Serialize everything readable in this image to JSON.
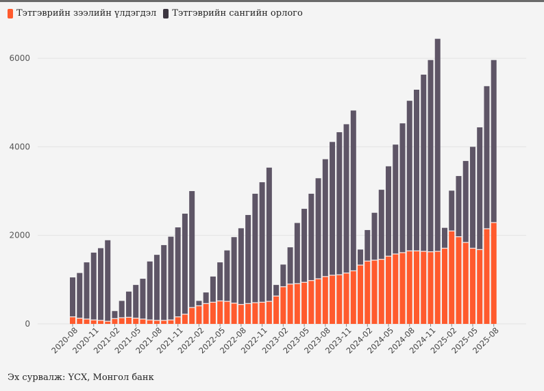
{
  "legend": {
    "series1": "Тэтгэврийн зээлийн үлдэгдэл",
    "series2": "Тэтгэврийн сангийн орлого"
  },
  "colors": {
    "series1": "#ff5a2d",
    "series2": "#5e5566",
    "grid": "#e2e2e2"
  },
  "source": "Эх сурвалж: ҮСХ, Монгол банк",
  "chart_data": {
    "type": "bar",
    "stacked": true,
    "title": "",
    "xlabel": "",
    "ylabel": "",
    "ylim": [
      0,
      6500
    ],
    "yticks": [
      0,
      2000,
      4000,
      6000
    ],
    "grid": true,
    "legend_position": "top-left",
    "x_tick_labels": [
      "2020-08",
      "2020-11",
      "2021-02",
      "2021-05",
      "2021-08",
      "2021-11",
      "2022-02",
      "2022-05",
      "2022-08",
      "2022-11",
      "2023-02",
      "2023-05",
      "2023-08",
      "2023-11",
      "2024-02",
      "2024-05",
      "2024-08",
      "2024-11",
      "2025-02",
      "2025-05",
      "2025-08"
    ],
    "categories": [
      "2020-08",
      "2020-09",
      "2020-10",
      "2020-11",
      "2020-12",
      "2021-01",
      "2021-02",
      "2021-03",
      "2021-04",
      "2021-05",
      "2021-06",
      "2021-07",
      "2021-08",
      "2021-09",
      "2021-10",
      "2021-11",
      "2021-12",
      "2022-01",
      "2022-02",
      "2022-03",
      "2022-04",
      "2022-05",
      "2022-06",
      "2022-07",
      "2022-08",
      "2022-09",
      "2022-10",
      "2022-11",
      "2022-12",
      "2023-01",
      "2023-02",
      "2023-03",
      "2023-04",
      "2023-05",
      "2023-06",
      "2023-07",
      "2023-08",
      "2023-09",
      "2023-10",
      "2023-11",
      "2023-12",
      "2024-01",
      "2024-02",
      "2024-03",
      "2024-04",
      "2024-05",
      "2024-06",
      "2024-07",
      "2024-08",
      "2024-09",
      "2024-10",
      "2024-11",
      "2024-12",
      "2025-01",
      "2025-02",
      "2025-03",
      "2025-04",
      "2025-05",
      "2025-06",
      "2025-07",
      "2025-08"
    ],
    "series": [
      {
        "name": "Тэтгэврийн зээлийн үлдэгдэл",
        "values": [
          160,
          130,
          110,
          90,
          80,
          60,
          120,
          140,
          150,
          130,
          110,
          90,
          80,
          80,
          90,
          160,
          220,
          370,
          410,
          460,
          490,
          520,
          510,
          470,
          440,
          460,
          480,
          490,
          510,
          630,
          840,
          900,
          910,
          940,
          980,
          1020,
          1070,
          1100,
          1110,
          1150,
          1200,
          1330,
          1420,
          1440,
          1460,
          1530,
          1580,
          1610,
          1650,
          1650,
          1640,
          1630,
          1640,
          1710,
          2100,
          1970,
          1840,
          1710,
          1680,
          2150,
          2290
        ]
      },
      {
        "name": "Тэтгэврийн сангийн орлого",
        "values": [
          890,
          1020,
          1280,
          1520,
          1630,
          1830,
          170,
          380,
          580,
          750,
          910,
          1320,
          1480,
          1700,
          1880,
          2020,
          2270,
          2630,
          110,
          250,
          580,
          870,
          1150,
          1490,
          1720,
          2000,
          2460,
          2710,
          3020,
          250,
          500,
          830,
          1370,
          1660,
          1960,
          2270,
          2650,
          3010,
          3220,
          3360,
          3620,
          350,
          700,
          1070,
          1570,
          2030,
          2470,
          2920,
          3390,
          3640,
          3990,
          4330,
          4800,
          460,
          910,
          1370,
          1840,
          2290,
          2760,
          3220,
          3670
        ]
      }
    ]
  }
}
